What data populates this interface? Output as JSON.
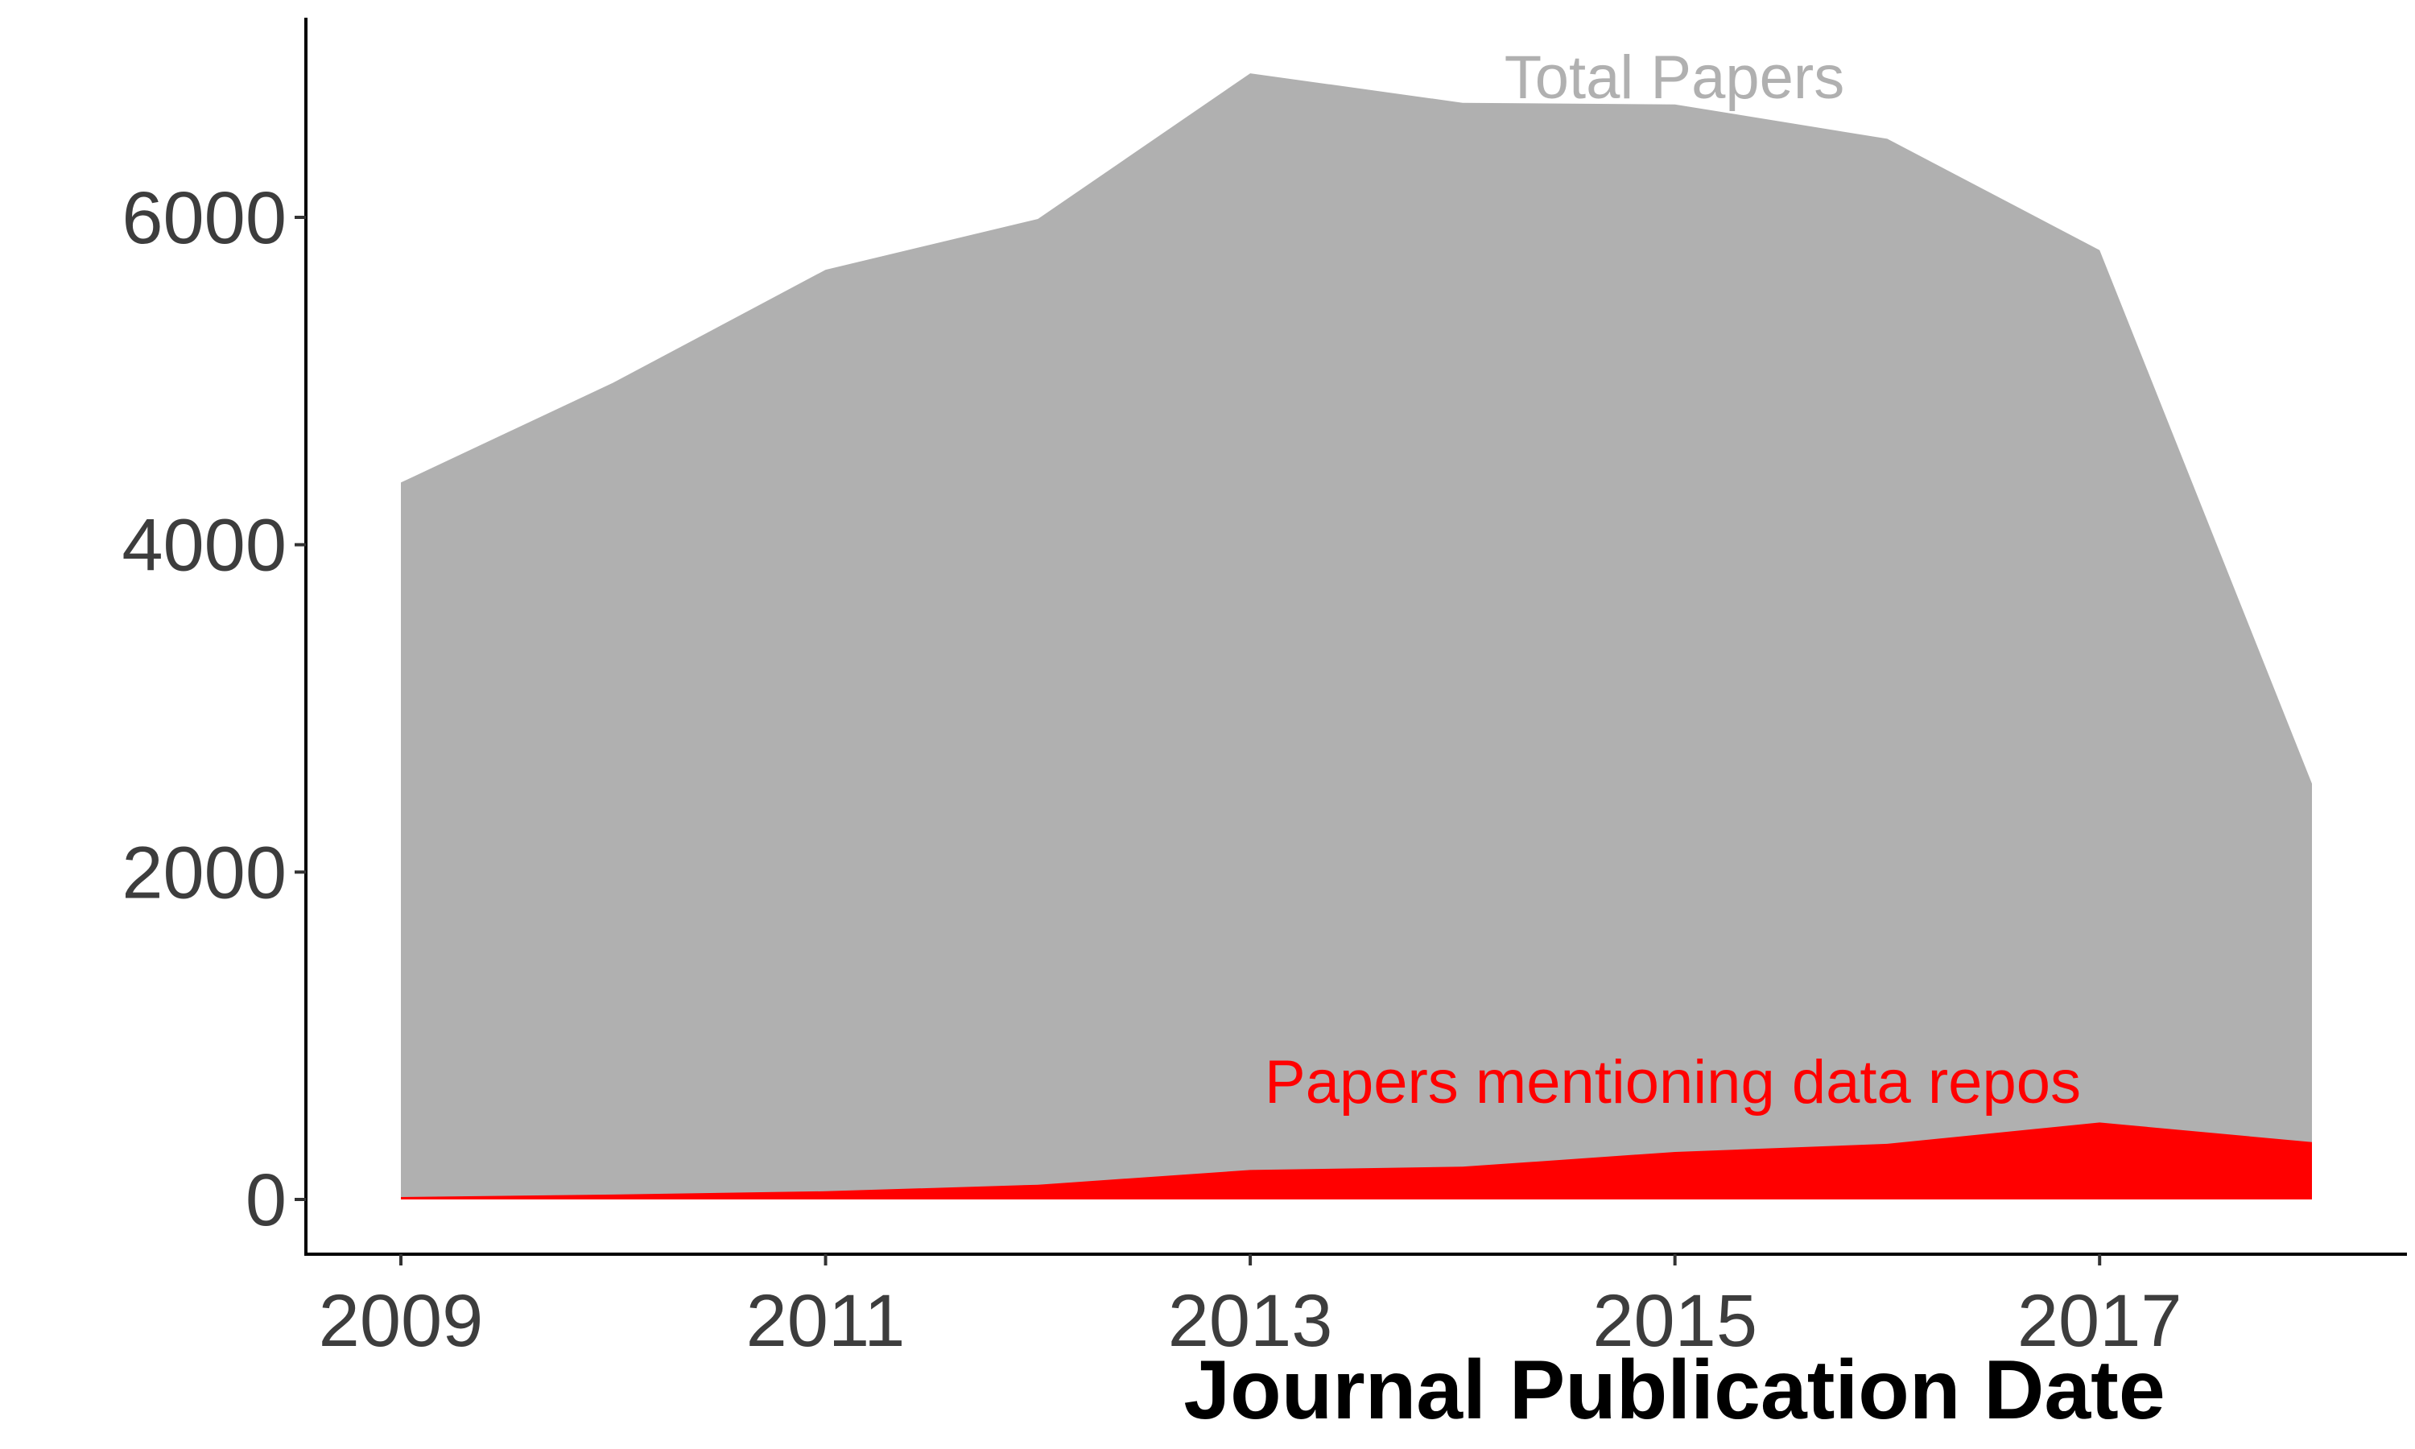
{
  "chart_data": {
    "type": "area",
    "title": "",
    "xlabel": "Journal Publication Date",
    "ylabel": "",
    "x": [
      2009,
      2010,
      2011,
      2012,
      2013,
      2014,
      2015,
      2016,
      2017,
      2018
    ],
    "xlim": [
      2009,
      2018
    ],
    "ylim": [
      0,
      7000
    ],
    "x_ticks": [
      "2009",
      "2011",
      "2013",
      "2015",
      "2017"
    ],
    "y_ticks": [
      "0",
      "2000",
      "4000",
      "6000"
    ],
    "grid": false,
    "legend": "none",
    "series": [
      {
        "name": "Total Papers",
        "color": "#b0b0b0",
        "label_color": "#b0b0b0",
        "values": [
          4380,
          4990,
          5680,
          5990,
          6880,
          6700,
          6690,
          6480,
          5800,
          2540
        ]
      },
      {
        "name": "Papers mentioning data repos",
        "color": "#ff0000",
        "label_color": "#ff0000",
        "values": [
          15,
          30,
          50,
          90,
          180,
          200,
          290,
          340,
          470,
          350
        ]
      }
    ]
  }
}
